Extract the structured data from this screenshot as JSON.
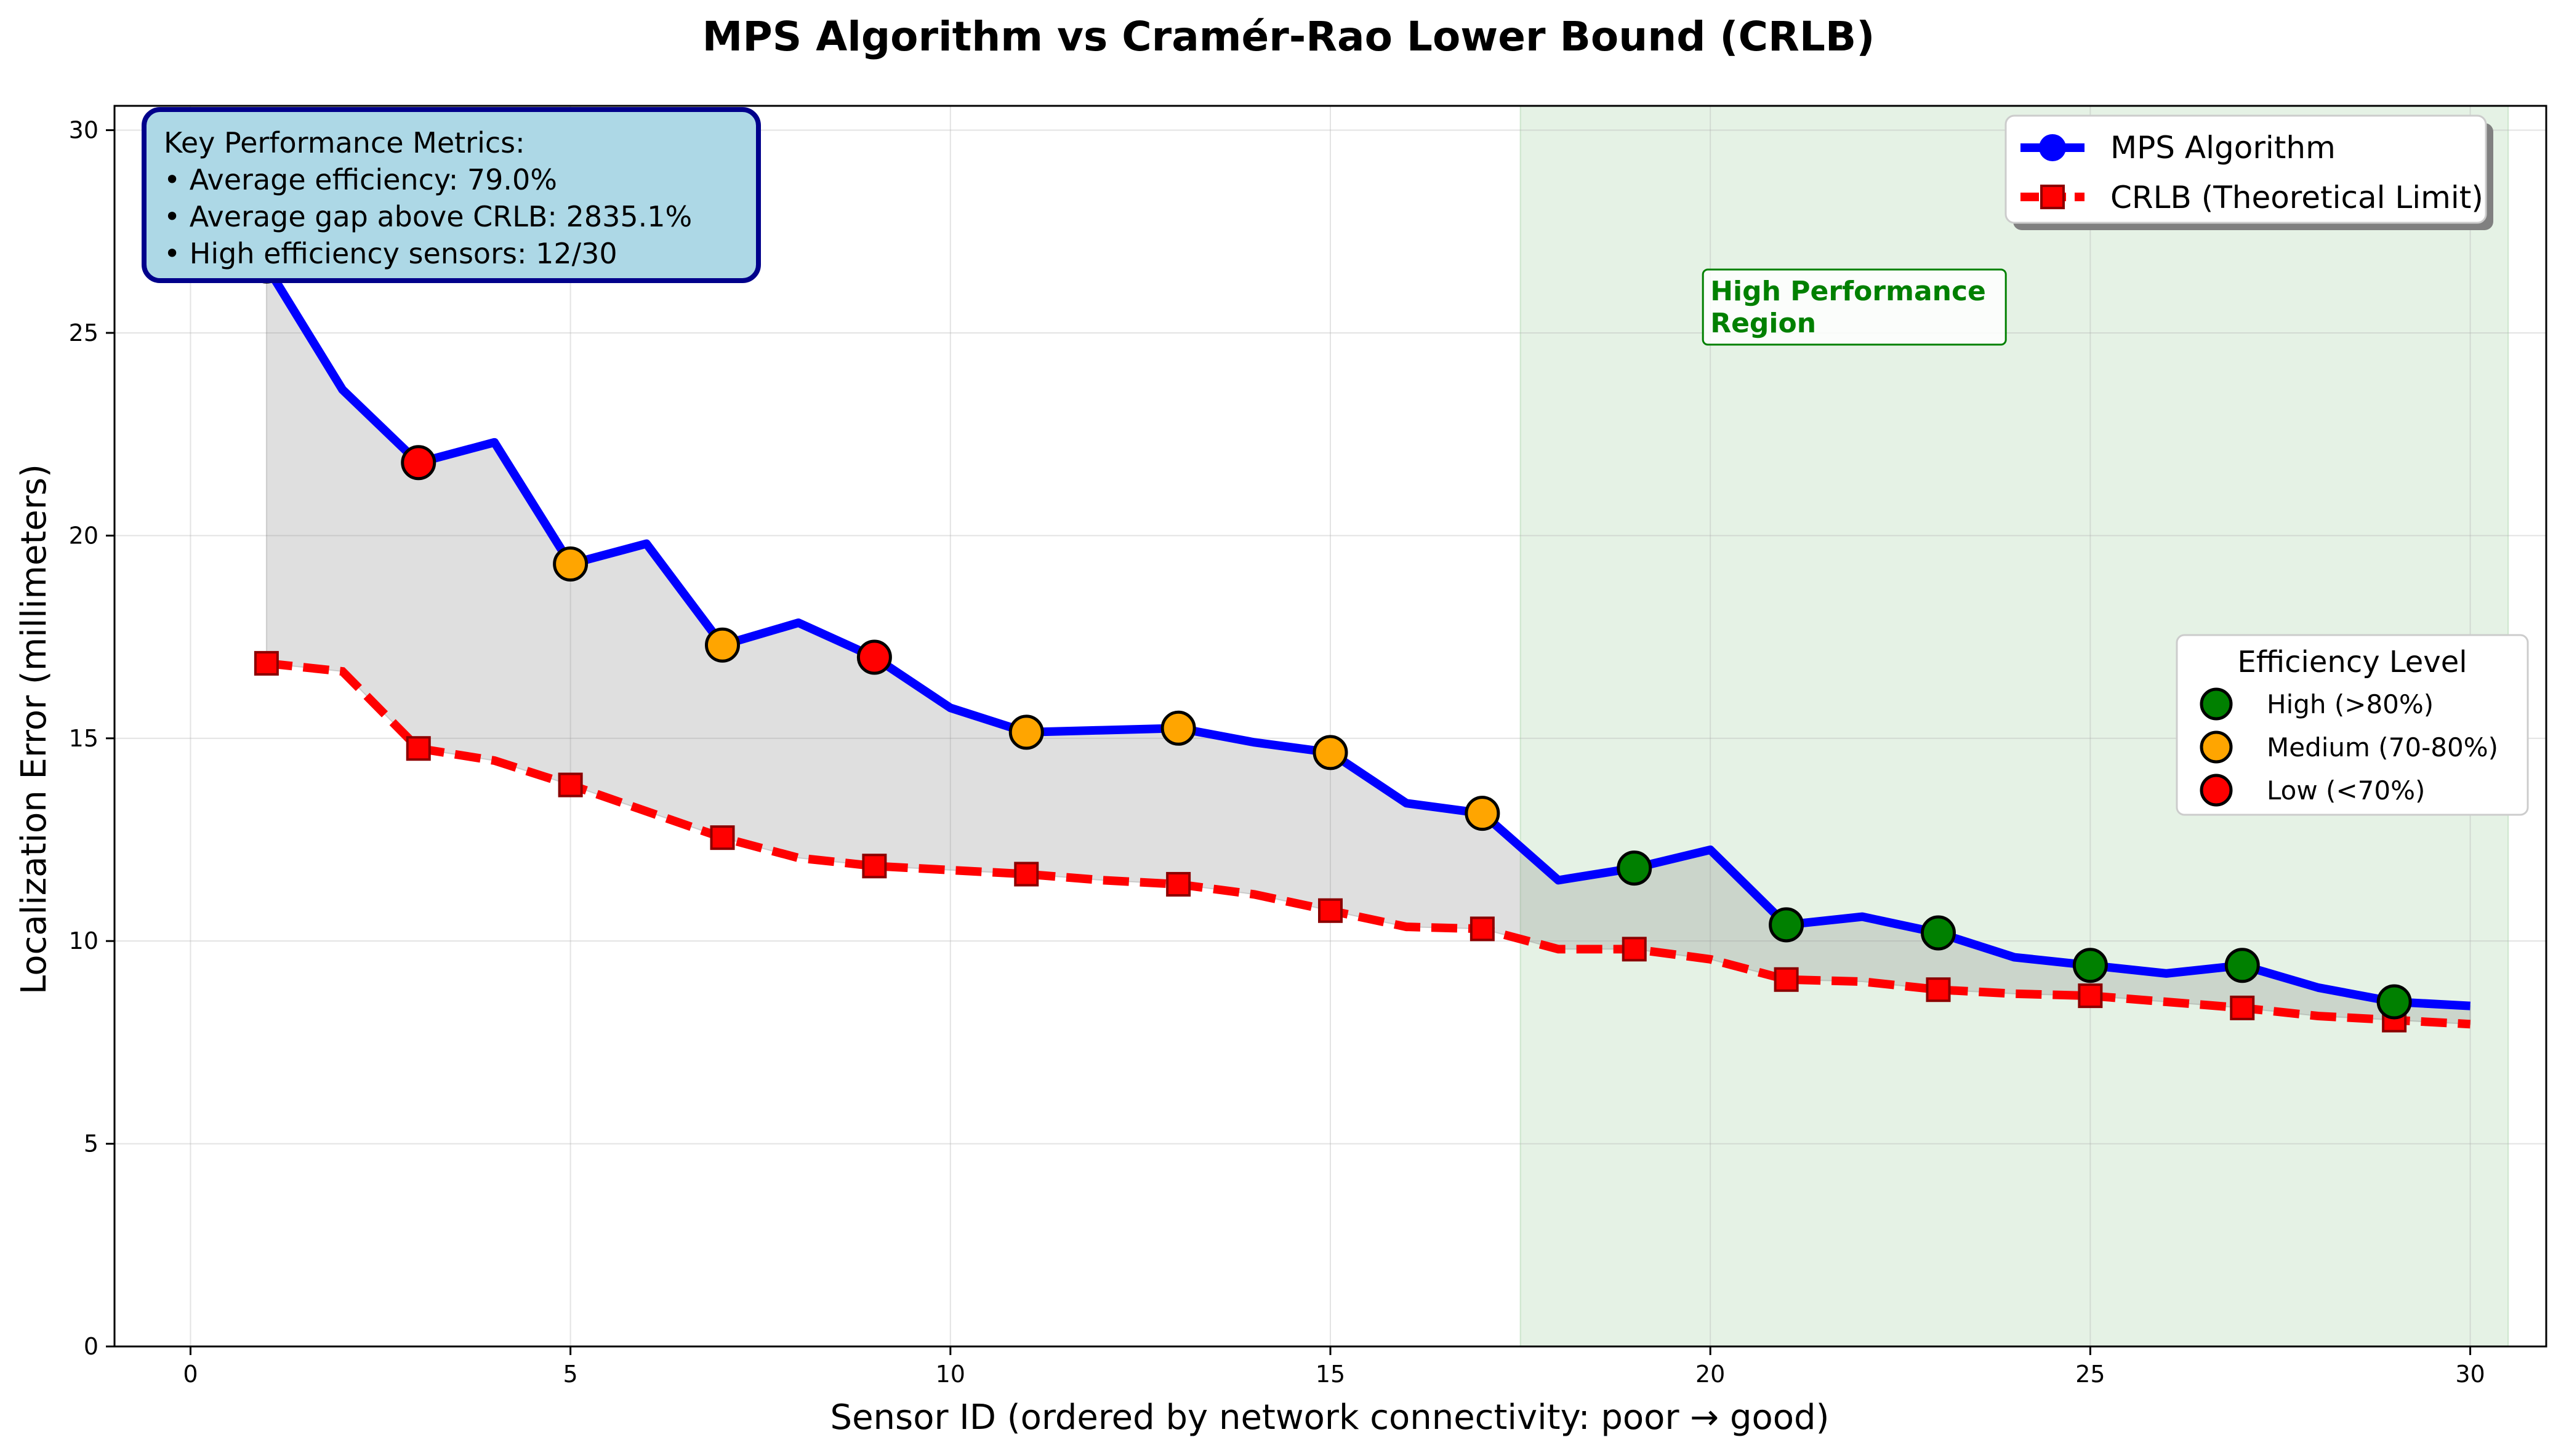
{
  "chart_data": {
    "type": "line",
    "title": "MPS Algorithm vs Cramér-Rao Lower Bound (CRLB)",
    "xlabel": "Sensor ID (ordered by network connectivity: poor → good)",
    "ylabel": "Localization Error (millimeters)",
    "xlim": [
      -1,
      31
    ],
    "ylim": [
      0,
      30.6
    ],
    "xticks": [
      0,
      5,
      10,
      15,
      20,
      25,
      30
    ],
    "yticks": [
      0,
      5,
      10,
      15,
      20,
      25,
      30
    ],
    "grid": true,
    "x": [
      1,
      2,
      3,
      4,
      5,
      6,
      7,
      8,
      9,
      10,
      11,
      12,
      13,
      14,
      15,
      16,
      17,
      18,
      19,
      20,
      21,
      22,
      23,
      24,
      25,
      26,
      27,
      28,
      29,
      30
    ],
    "series": [
      {
        "name": "MPS Algorithm",
        "color": "#0000ff",
        "style": "solid",
        "values": [
          26.65,
          23.6,
          21.8,
          22.3,
          19.3,
          19.8,
          17.3,
          17.85,
          17.0,
          15.75,
          15.15,
          15.2,
          15.25,
          14.9,
          14.65,
          13.4,
          13.15,
          11.5,
          11.8,
          12.25,
          10.4,
          10.6,
          10.2,
          9.6,
          9.4,
          9.2,
          9.4,
          8.85,
          8.5,
          8.4
        ]
      },
      {
        "name": "CRLB (Theoretical Limit)",
        "color": "#ff0000",
        "style": "dashed",
        "values": [
          16.85,
          16.65,
          14.75,
          14.45,
          13.85,
          13.2,
          12.55,
          12.05,
          11.85,
          11.75,
          11.65,
          11.5,
          11.4,
          11.15,
          10.75,
          10.35,
          10.3,
          9.8,
          9.8,
          9.55,
          9.05,
          9.0,
          8.8,
          8.7,
          8.65,
          8.5,
          8.35,
          8.15,
          8.05,
          7.95
        ]
      }
    ],
    "efficiency_markers": [
      {
        "x": 1,
        "y": 26.65,
        "level": "low"
      },
      {
        "x": 3,
        "y": 21.8,
        "level": "low"
      },
      {
        "x": 5,
        "y": 19.3,
        "level": "medium"
      },
      {
        "x": 7,
        "y": 17.3,
        "level": "medium"
      },
      {
        "x": 9,
        "y": 17.0,
        "level": "low"
      },
      {
        "x": 11,
        "y": 15.15,
        "level": "medium"
      },
      {
        "x": 13,
        "y": 15.25,
        "level": "medium"
      },
      {
        "x": 15,
        "y": 14.65,
        "level": "medium"
      },
      {
        "x": 17,
        "y": 13.15,
        "level": "medium"
      },
      {
        "x": 19,
        "y": 11.8,
        "level": "high"
      },
      {
        "x": 21,
        "y": 10.4,
        "level": "high"
      },
      {
        "x": 23,
        "y": 10.2,
        "level": "high"
      },
      {
        "x": 25,
        "y": 9.4,
        "level": "high"
      },
      {
        "x": 27,
        "y": 9.4,
        "level": "high"
      },
      {
        "x": 29,
        "y": 8.5,
        "level": "high"
      }
    ],
    "crlb_marker_x": [
      1,
      3,
      5,
      7,
      9,
      11,
      13,
      15,
      17,
      19,
      21,
      23,
      25,
      27,
      29
    ],
    "highlight_region": {
      "x0": 17.5,
      "x1": 30.5,
      "label": "High Performance Region",
      "label_lines": [
        "High Performance",
        "Region"
      ],
      "label_x": 20,
      "label_y": 25.5,
      "color": "#008000"
    },
    "efficiency_legend": {
      "title": "Efficiency Level",
      "placement": "center-right",
      "items": [
        {
          "key": "high",
          "label": "High (>80%)",
          "color": "#008000"
        },
        {
          "key": "medium",
          "label": "Medium (70-80%)",
          "color": "#ffa500"
        },
        {
          "key": "low",
          "label": "Low (<70%)",
          "color": "#ff0000"
        }
      ]
    },
    "legend_placement": "top-right",
    "metrics_box": {
      "lines": [
        "Key Performance Metrics:",
        "• Average efficiency: 79.0%",
        "• Average gap above CRLB: 2835.1%",
        "• High efficiency sensors: 12/30"
      ],
      "background": "#add8e6",
      "border": "#00008b"
    }
  }
}
